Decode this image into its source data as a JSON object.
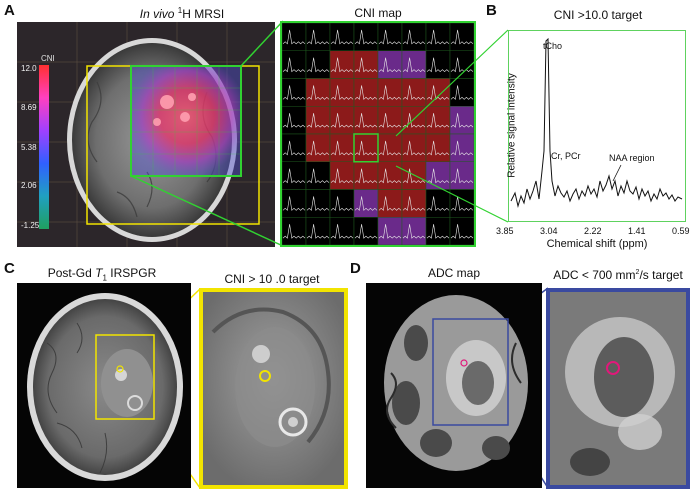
{
  "panels": {
    "A": {
      "letter": "A",
      "title_left_italic": "In vivo",
      "title_left_sup": "1",
      "title_left_rest": "H MRSI",
      "title_right": "CNI map",
      "colorbar": {
        "label": "CNI",
        "ticks": [
          "12.0",
          "8.69",
          "5.38",
          "2.06",
          "-1.25"
        ]
      }
    },
    "B": {
      "letter": "B",
      "title": "CNI >10.0 target",
      "ylabel": "Relative signal intensity",
      "xlabel": "Chemical shift (ppm)",
      "xticks": [
        "3.85",
        "3.04",
        "2.22",
        "1.41",
        "0.59"
      ],
      "annotations": [
        "tCho",
        "Cr, PCr",
        "NAA region"
      ],
      "border_color": "#5ed25e"
    },
    "C": {
      "letter": "C",
      "title_left_prefix": "Post-Gd ",
      "title_left_italic": "T",
      "title_left_sub": "1",
      "title_left_rest": " IRSPGR",
      "title_right": "CNI > 10 .0 target",
      "box_color": "#f2e400"
    },
    "D": {
      "letter": "D",
      "title_left": "ADC map",
      "title_right_prefix": "ADC < 700 mm",
      "title_right_sup": "2",
      "title_right_rest": "/s target",
      "box_color": "#3a4aa0"
    }
  },
  "colors": {
    "cni_green": "#31d231",
    "target_yellow": "#f2e400",
    "adc_blue": "#3a4aa0",
    "target_magenta": "#e0187a"
  }
}
